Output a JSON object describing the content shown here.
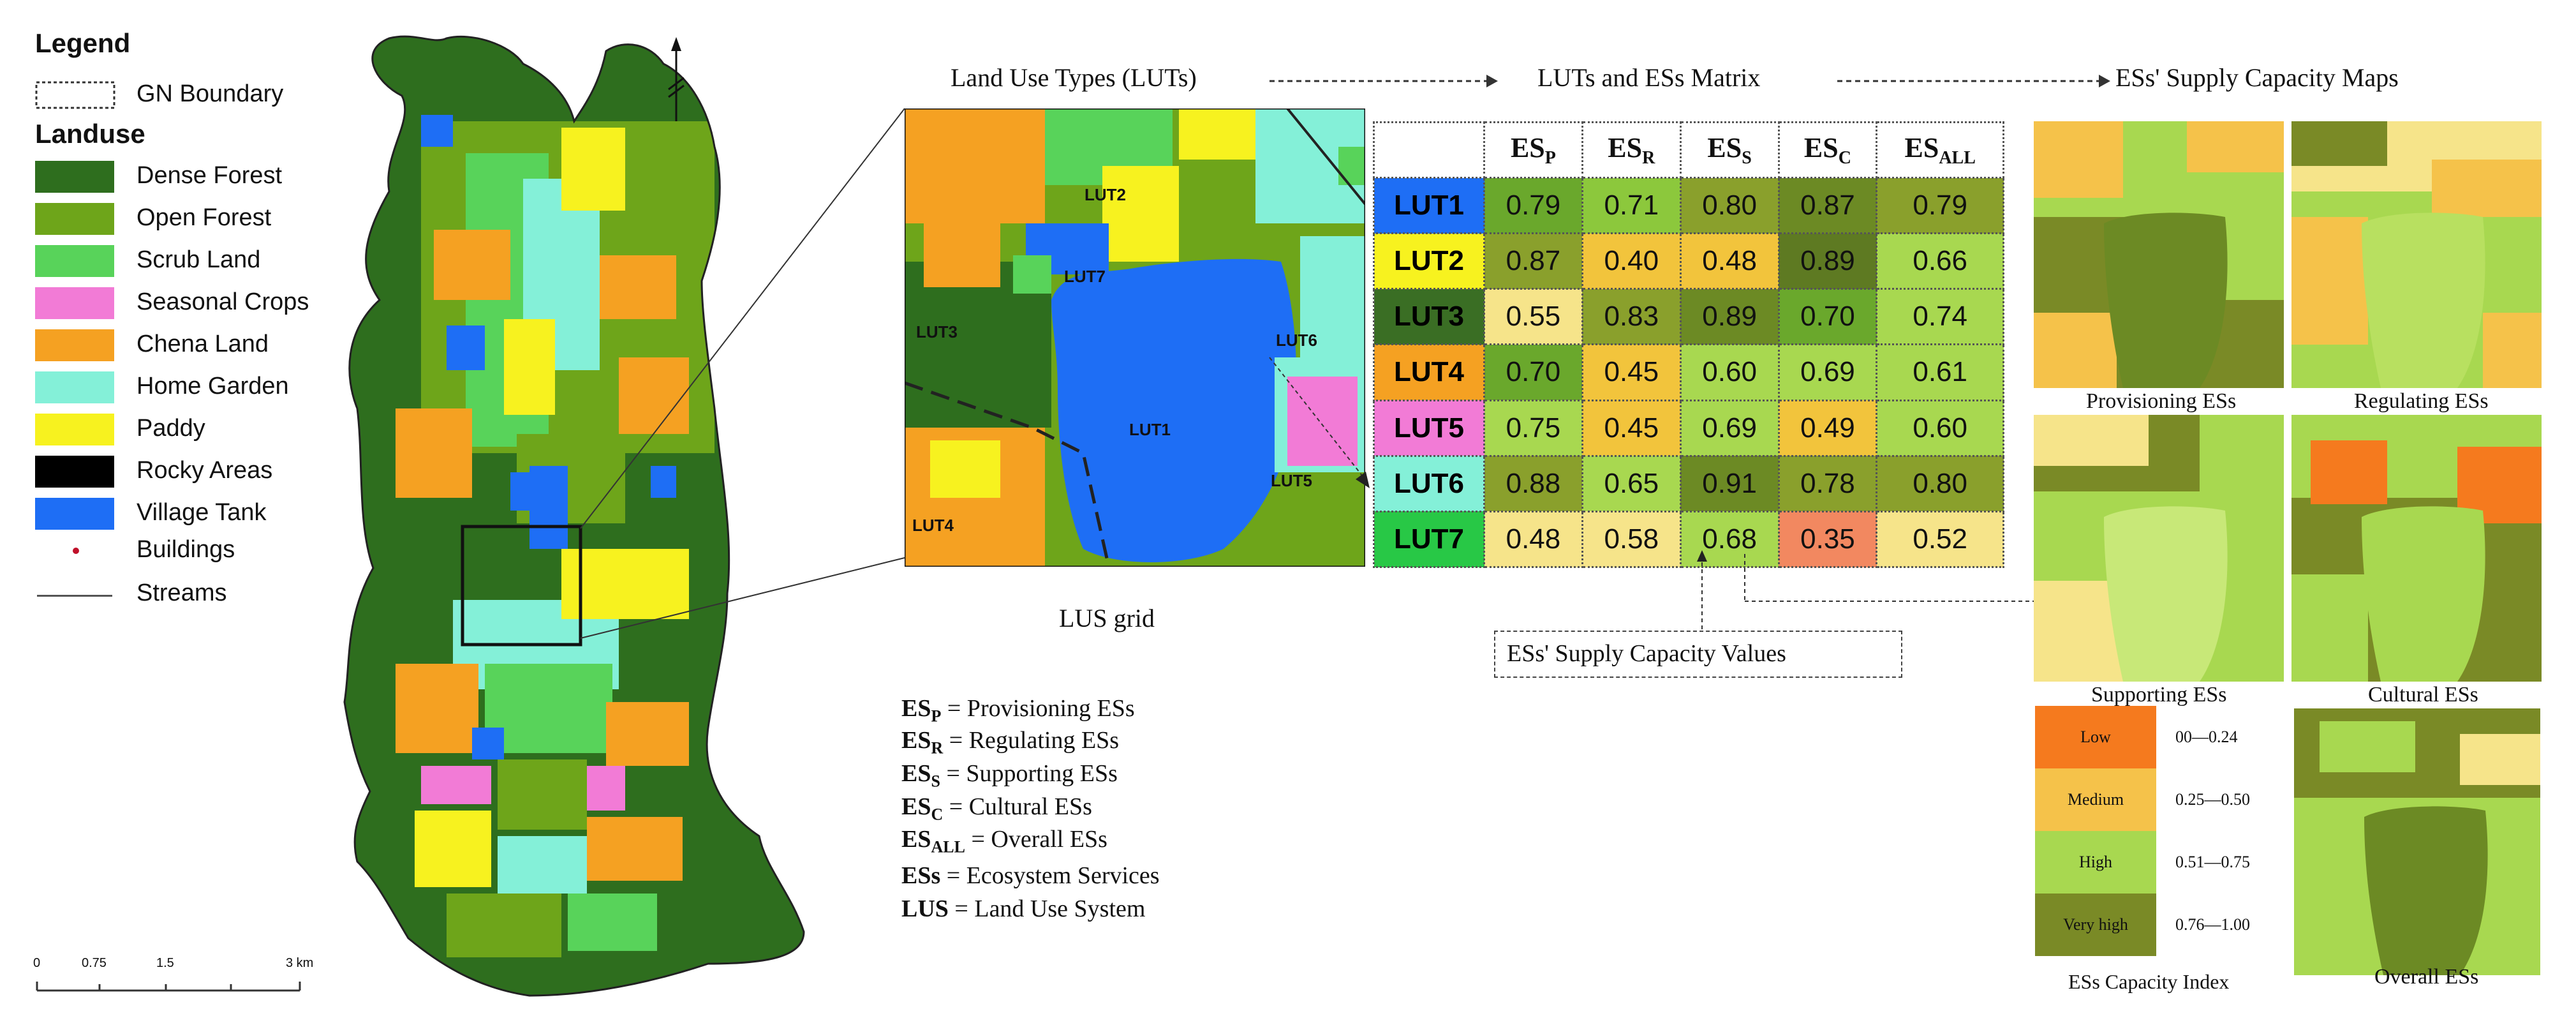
{
  "legend": {
    "title": "Legend",
    "gn_boundary": "GN Boundary",
    "landuse_title": "Landuse",
    "classes": [
      {
        "label": "Dense Forest",
        "color": "#2e6e1e"
      },
      {
        "label": "Open Forest",
        "color": "#6ea51a"
      },
      {
        "label": "Scrub Land",
        "color": "#58d35a"
      },
      {
        "label": "Seasonal Crops",
        "color": "#f27bd6"
      },
      {
        "label": "Chena Land",
        "color": "#f5a122"
      },
      {
        "label": "Home Garden",
        "color": "#84f0d8"
      },
      {
        "label": "Paddy",
        "color": "#f7f21f"
      },
      {
        "label": "Rocky Areas",
        "color": "#000000"
      },
      {
        "label": "Village Tank",
        "color": "#1e6ef5"
      }
    ],
    "buildings": "Buildings",
    "streams": "Streams",
    "scale_ticks": [
      "0",
      "0.75",
      "1.5",
      "3 km"
    ]
  },
  "flow": {
    "luts": "Land Use Types (LUTs)",
    "matrix": "LUTs and ESs Matrix",
    "maps": "ESs' Supply Capacity Maps"
  },
  "lus_grid": {
    "caption": "LUS grid",
    "labels": [
      "LUT2",
      "LUT7",
      "LUT3",
      "LUT6",
      "LUT1",
      "LUT5",
      "LUT4"
    ]
  },
  "abbreviations": [
    {
      "key": "ES",
      "sub": "P",
      "text": " = Provisioning ESs"
    },
    {
      "key": "ES",
      "sub": "R",
      "text": " = Regulating ESs"
    },
    {
      "key": "ES",
      "sub": "S",
      "text": " = Supporting ESs"
    },
    {
      "key": "ES",
      "sub": "C",
      "text": " = Cultural ESs"
    },
    {
      "key": "ES",
      "sub": "ALL",
      "text": " = Overall ESs"
    },
    {
      "key": "ESs",
      "sub": "",
      "text": " = Ecosystem Services"
    },
    {
      "key": "LUS",
      "sub": "",
      "text": " = Land Use System"
    }
  ],
  "matrix": {
    "headers": [
      {
        "main": "ES",
        "sub": "P"
      },
      {
        "main": "ES",
        "sub": "R"
      },
      {
        "main": "ES",
        "sub": "S"
      },
      {
        "main": "ES",
        "sub": "C"
      },
      {
        "main": "ES",
        "sub": "ALL"
      }
    ],
    "rows": [
      {
        "lut": "LUT1",
        "lut_color": "#1e6ef5",
        "lut_text": "#000000",
        "values": [
          "0.79",
          "0.71",
          "0.80",
          "0.87",
          "0.79"
        ],
        "colors": [
          "#6aa82c",
          "#8cc83c",
          "#8aa02c",
          "#6c8a24",
          "#8aa02c"
        ]
      },
      {
        "lut": "LUT2",
        "lut_color": "#f7f21f",
        "lut_text": "#000000",
        "values": [
          "0.87",
          "0.40",
          "0.48",
          "0.89",
          "0.66"
        ],
        "colors": [
          "#8aa02c",
          "#f2c43c",
          "#f2c43c",
          "#5e7a22",
          "#a8d850"
        ]
      },
      {
        "lut": "LUT3",
        "lut_color": "#3a6e24",
        "lut_text": "#000000",
        "values": [
          "0.55",
          "0.83",
          "0.89",
          "0.70",
          "0.74"
        ],
        "colors": [
          "#f6e48a",
          "#8aa02c",
          "#6c8a24",
          "#6aa82c",
          "#a8d850"
        ]
      },
      {
        "lut": "LUT4",
        "lut_color": "#f5a122",
        "lut_text": "#000000",
        "values": [
          "0.70",
          "0.45",
          "0.60",
          "0.69",
          "0.61"
        ],
        "colors": [
          "#6aa82c",
          "#f2c43c",
          "#a8d850",
          "#a8d850",
          "#a8d850"
        ]
      },
      {
        "lut": "LUT5",
        "lut_color": "#f27bd6",
        "lut_text": "#000000",
        "values": [
          "0.75",
          "0.45",
          "0.69",
          "0.49",
          "0.60"
        ],
        "colors": [
          "#a8d850",
          "#f2c43c",
          "#a8d850",
          "#f2c43c",
          "#a8d850"
        ]
      },
      {
        "lut": "LUT6",
        "lut_color": "#84f0d8",
        "lut_text": "#000000",
        "values": [
          "0.88",
          "0.65",
          "0.91",
          "0.78",
          "0.80"
        ],
        "colors": [
          "#8aa02c",
          "#a8d850",
          "#6c8a24",
          "#8aa02c",
          "#8aa02c"
        ]
      },
      {
        "lut": "LUT7",
        "lut_color": "#28c846",
        "lut_text": "#000000",
        "values": [
          "0.48",
          "0.58",
          "0.68",
          "0.35",
          "0.52"
        ],
        "colors": [
          "#f6e48a",
          "#f6e48a",
          "#a8d850",
          "#f28860",
          "#f6e48a"
        ]
      }
    ],
    "values_caption": "ESs' Supply Capacity Values"
  },
  "maps": {
    "provisioning": "Provisioning ESs",
    "regulating": "Regulating ESs",
    "supporting": "Supporting ESs",
    "cultural": "Cultural ESs",
    "overall": "Overall ESs"
  },
  "capacity_index": {
    "title": "ESs Capacity Index",
    "classes": [
      {
        "label": "Low",
        "range": "00—0.24",
        "color": "#f57a1e"
      },
      {
        "label": "Medium",
        "range": "0.25—0.50",
        "color": "#f5c24a"
      },
      {
        "label": "High",
        "range": "0.51—0.75",
        "color": "#a8d850"
      },
      {
        "label": "Very high",
        "range": "0.76—1.00",
        "color": "#7a8a26"
      }
    ]
  }
}
